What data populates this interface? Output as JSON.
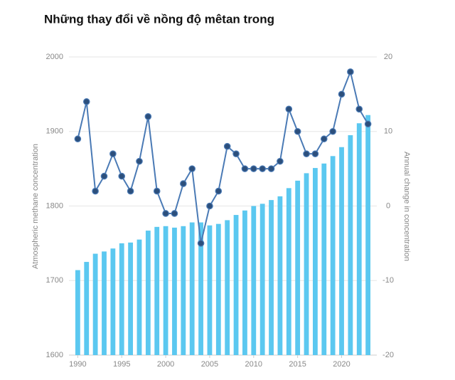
{
  "chart_data": {
    "type": "bar-line",
    "title": "Những thay đổi về nồng độ mêtan trong",
    "y_label": "Atmospheric methane concentration",
    "y2_label": "Annual change in concentration",
    "x": [
      1990,
      1991,
      1992,
      1993,
      1994,
      1995,
      1996,
      1997,
      1998,
      1999,
      2000,
      2001,
      2002,
      2003,
      2004,
      2005,
      2006,
      2007,
      2008,
      2009,
      2010,
      2011,
      2012,
      2013,
      2014,
      2015,
      2016,
      2017,
      2018,
      2019,
      2020,
      2021,
      2022,
      2023
    ],
    "xlim": [
      1989,
      2024
    ],
    "xticks": [
      1990,
      1995,
      2000,
      2005,
      2010,
      2015,
      2020
    ],
    "ylim": [
      1600,
      2000
    ],
    "yticks": [
      1600,
      1700,
      1800,
      1900,
      2000
    ],
    "y2lim": [
      -20,
      20
    ],
    "y2ticks": [
      -20,
      -10,
      0,
      10,
      20
    ],
    "grid": true,
    "series": [
      {
        "type": "bar",
        "color": "#5bc8f0",
        "values": [
          1714,
          1725,
          1736,
          1739,
          1743,
          1750,
          1751,
          1755,
          1767,
          1772,
          1773,
          1771,
          1773,
          1778,
          1778,
          1774,
          1776,
          1781,
          1788,
          1794,
          1800,
          1803,
          1808,
          1813,
          1824,
          1834,
          1844,
          1851,
          1857,
          1867,
          1879,
          1895,
          1911,
          1922
        ]
      },
      {
        "type": "line",
        "axis": "y2",
        "color": "#4a7ab5",
        "marker_color": "#2c4f7c",
        "values": [
          9,
          14,
          2,
          4,
          7,
          4,
          2,
          6,
          12,
          2,
          -1,
          -1,
          3,
          5,
          -5,
          0,
          2,
          8,
          7,
          5,
          5,
          5,
          5,
          6,
          13,
          10,
          7,
          7,
          9,
          10,
          15,
          18,
          13,
          11
        ]
      }
    ]
  }
}
